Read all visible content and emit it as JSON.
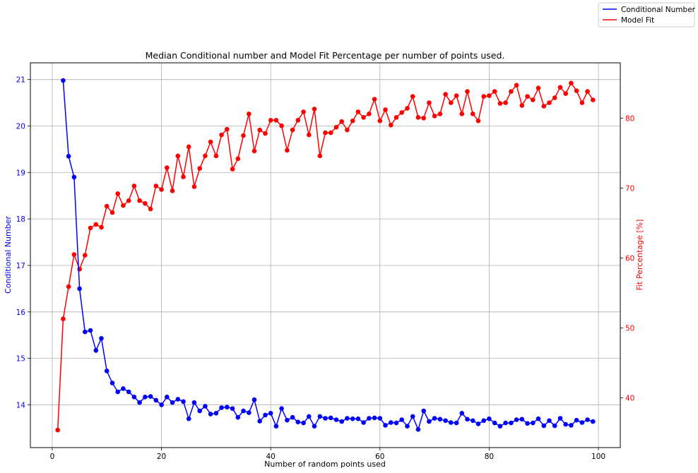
{
  "chart_data": {
    "type": "line",
    "title": "Median Conditional number and Model Fit Percentage per number of points used.",
    "xlabel": "Number of random points used",
    "ylabel_left": "Conditional Number",
    "ylabel_right": "Fit Percentage [%]",
    "xlim": [
      -4,
      104
    ],
    "ylim_left": [
      13.08,
      21.36
    ],
    "ylim_right": [
      32.9,
      87.9
    ],
    "x_ticks": [
      0,
      20,
      40,
      60,
      80,
      100
    ],
    "y_ticks_left": [
      14,
      15,
      16,
      17,
      18,
      19,
      20,
      21
    ],
    "y_ticks_right": [
      40,
      50,
      60,
      70,
      80
    ],
    "grid": true,
    "legend_position": "upper-right-outside",
    "colors": {
      "left_axis": "#0000ff",
      "right_axis": "#ff0000",
      "grid": "#b0b0b0"
    },
    "series": [
      {
        "name": "Conditional Number",
        "axis": "left",
        "color": "#0000ff",
        "x": [
          2,
          3,
          4,
          5,
          6,
          7,
          8,
          9,
          10,
          11,
          12,
          13,
          14,
          15,
          16,
          17,
          18,
          19,
          20,
          21,
          22,
          23,
          24,
          25,
          26,
          27,
          28,
          29,
          30,
          31,
          32,
          33,
          34,
          35,
          36,
          37,
          38,
          39,
          40,
          41,
          42,
          43,
          44,
          45,
          46,
          47,
          48,
          49,
          50,
          51,
          52,
          53,
          54,
          55,
          56,
          57,
          58,
          59,
          60,
          61,
          62,
          63,
          64,
          65,
          66,
          67,
          68,
          69,
          70,
          71,
          72,
          73,
          74,
          75,
          76,
          77,
          78,
          79,
          80,
          81,
          82,
          83,
          84,
          85,
          86,
          87,
          88,
          89,
          90,
          91,
          92,
          93,
          94,
          95,
          96,
          97,
          98,
          99
        ],
        "values": [
          20.98,
          19.35,
          18.9,
          16.5,
          15.57,
          15.6,
          15.17,
          15.43,
          14.73,
          14.47,
          14.28,
          14.35,
          14.28,
          14.17,
          14.05,
          14.17,
          14.18,
          14.1,
          14.0,
          14.17,
          14.05,
          14.12,
          14.07,
          13.7,
          14.05,
          13.87,
          13.97,
          13.8,
          13.82,
          13.94,
          13.95,
          13.92,
          13.73,
          13.87,
          13.83,
          14.11,
          13.65,
          13.78,
          13.82,
          13.54,
          13.92,
          13.67,
          13.73,
          13.63,
          13.61,
          13.75,
          13.54,
          13.75,
          13.71,
          13.72,
          13.68,
          13.64,
          13.71,
          13.7,
          13.7,
          13.62,
          13.71,
          13.72,
          13.71,
          13.56,
          13.62,
          13.61,
          13.68,
          13.54,
          13.75,
          13.47,
          13.87,
          13.64,
          13.71,
          13.69,
          13.66,
          13.62,
          13.61,
          13.82,
          13.69,
          13.66,
          13.59,
          13.66,
          13.7,
          13.61,
          13.54,
          13.61,
          13.61,
          13.68,
          13.69,
          13.6,
          13.61,
          13.7,
          13.55,
          13.66,
          13.55,
          13.71,
          13.58,
          13.56,
          13.67,
          13.62,
          13.68,
          13.64
        ]
      },
      {
        "name": "Model Fit",
        "axis": "right",
        "color": "#ff0000",
        "x": [
          1,
          2,
          3,
          4,
          5,
          6,
          7,
          8,
          9,
          10,
          11,
          12,
          13,
          14,
          15,
          16,
          17,
          18,
          19,
          20,
          21,
          22,
          23,
          24,
          25,
          26,
          27,
          28,
          29,
          30,
          31,
          32,
          33,
          34,
          35,
          36,
          37,
          38,
          39,
          40,
          41,
          42,
          43,
          44,
          45,
          46,
          47,
          48,
          49,
          50,
          51,
          52,
          53,
          54,
          55,
          56,
          57,
          58,
          59,
          60,
          61,
          62,
          63,
          64,
          65,
          66,
          67,
          68,
          69,
          70,
          71,
          72,
          73,
          74,
          75,
          76,
          77,
          78,
          79,
          80,
          81,
          82,
          83,
          84,
          85,
          86,
          87,
          88,
          89,
          90,
          91,
          92,
          93,
          94,
          95,
          96,
          97,
          98,
          99
        ],
        "values": [
          35.4,
          51.3,
          55.9,
          60.5,
          58.4,
          60.4,
          64.3,
          64.8,
          64.4,
          67.4,
          66.5,
          69.2,
          67.5,
          68.2,
          70.3,
          68.2,
          67.8,
          67.0,
          70.3,
          69.8,
          72.9,
          69.6,
          74.6,
          71.6,
          75.9,
          70.2,
          72.8,
          74.6,
          76.6,
          74.6,
          77.6,
          78.4,
          72.7,
          74.2,
          77.5,
          80.6,
          75.3,
          78.3,
          77.8,
          79.7,
          79.7,
          78.9,
          75.4,
          78.3,
          79.7,
          80.9,
          77.6,
          81.3,
          74.6,
          77.9,
          77.9,
          78.7,
          79.5,
          78.3,
          79.6,
          80.9,
          80.1,
          80.6,
          82.7,
          79.6,
          81.2,
          79.0,
          80.1,
          80.8,
          81.4,
          83.1,
          80.1,
          80.0,
          82.2,
          80.3,
          80.6,
          83.4,
          82.2,
          83.2,
          80.6,
          83.8,
          80.6,
          79.6,
          83.1,
          83.2,
          83.8,
          82.1,
          82.2,
          83.8,
          84.7,
          81.8,
          83.1,
          82.6,
          84.3,
          81.7,
          82.2,
          82.9,
          84.4,
          83.5,
          85.0,
          83.9,
          82.2,
          83.8,
          82.6
        ]
      }
    ]
  }
}
